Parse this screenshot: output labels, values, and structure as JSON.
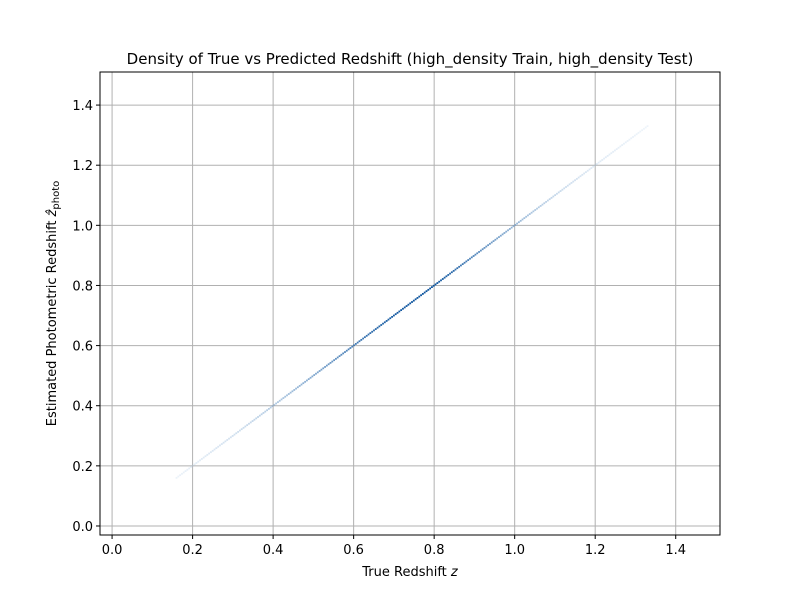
{
  "chart_data": {
    "type": "heatmap",
    "title": "Density of True vs Predicted Redshift (high_density Train, high_density Test)",
    "xlabel": "True Redshift",
    "xlabel_var": "z",
    "ylabel": "Estimated Photometric Redshift",
    "ylabel_var": "ẑ",
    "ylabel_sub": "photo",
    "xlim": [
      -0.03,
      1.51
    ],
    "ylim": [
      -0.03,
      1.51
    ],
    "xticks": [
      0.0,
      0.2,
      0.4,
      0.6,
      0.8,
      1.0,
      1.2,
      1.4
    ],
    "yticks": [
      0.0,
      0.2,
      0.4,
      0.6,
      0.8,
      1.0,
      1.2,
      1.4
    ],
    "xtick_labels": [
      "0.0",
      "0.2",
      "0.4",
      "0.6",
      "0.8",
      "1.0",
      "1.2",
      "1.4"
    ],
    "ytick_labels": [
      "0.0",
      "0.2",
      "0.4",
      "0.6",
      "0.8",
      "1.0",
      "1.2",
      "1.4"
    ],
    "grid": true,
    "colormap": "Blues",
    "colors": {
      "grid": "#b0b0b0",
      "dense": "#08519c",
      "sparse": "#c6dbef"
    },
    "density_profile": {
      "z": [
        0.16,
        0.2,
        0.3,
        0.4,
        0.5,
        0.6,
        0.7,
        0.8,
        0.9,
        1.0,
        1.1,
        1.2,
        1.3,
        1.33
      ],
      "density": [
        0.05,
        0.12,
        0.25,
        0.42,
        0.62,
        0.82,
        0.97,
        1.0,
        0.78,
        0.55,
        0.32,
        0.16,
        0.06,
        0.03
      ]
    }
  }
}
